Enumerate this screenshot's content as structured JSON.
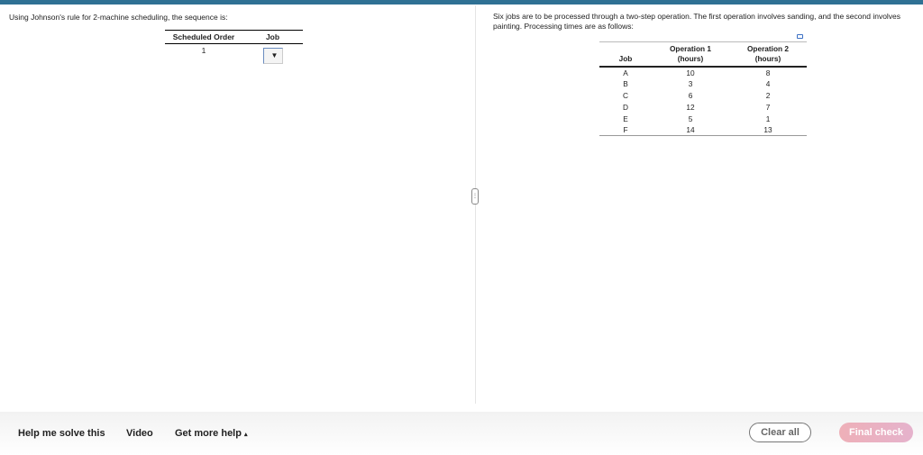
{
  "colors": {
    "topbar": "#2f7194",
    "final_check": "#eeb0b8"
  },
  "left": {
    "prompt": "Using Johnson's rule for 2-machine scheduling, the sequence is:",
    "headers": [
      "Scheduled Order",
      "Job"
    ],
    "rows": [
      {
        "order": "1",
        "job": ""
      }
    ]
  },
  "right": {
    "prompt": "Six jobs are to be processed through a two-step operation.  The first operation involves sanding, and the second involves painting. Processing times are as follows:",
    "headers": {
      "job": "Job",
      "op1": "Operation 1",
      "op1_unit": "(hours)",
      "op2": "Operation 2",
      "op2_unit": "(hours)"
    },
    "rows": [
      {
        "job": "A",
        "op1": "10",
        "op2": "8"
      },
      {
        "job": "B",
        "op1": "3",
        "op2": "4"
      },
      {
        "job": "C",
        "op1": "6",
        "op2": "2"
      },
      {
        "job": "D",
        "op1": "12",
        "op2": "7"
      },
      {
        "job": "E",
        "op1": "5",
        "op2": "1"
      },
      {
        "job": "F",
        "op1": "14",
        "op2": "13"
      }
    ]
  },
  "footer": {
    "help": "Help me solve this",
    "video": "Video",
    "more": "Get more help",
    "more_arrow": "▴",
    "clear": "Clear all",
    "final": "Final check"
  }
}
